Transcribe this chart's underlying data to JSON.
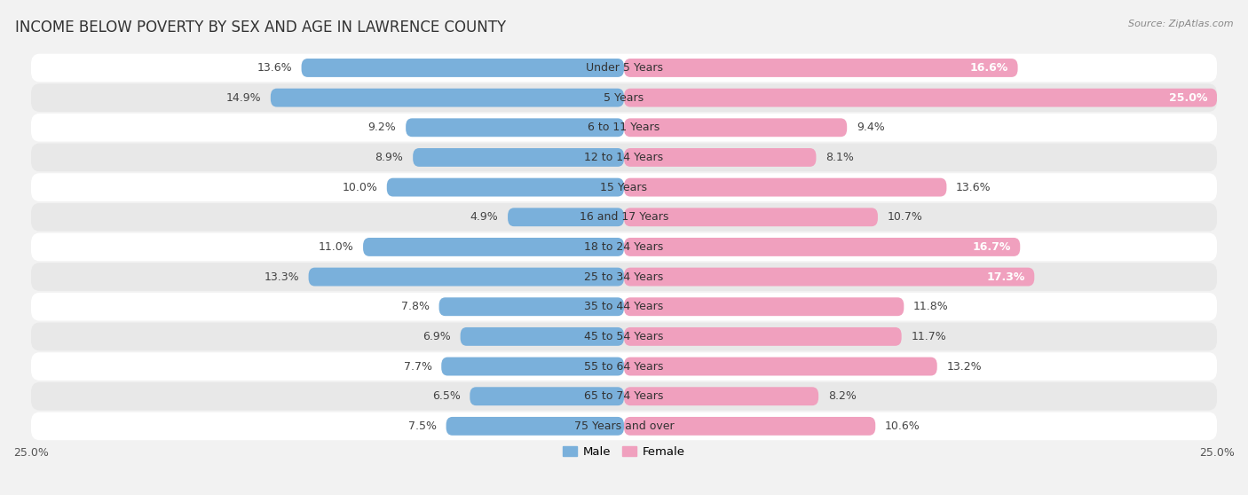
{
  "title": "INCOME BELOW POVERTY BY SEX AND AGE IN LAWRENCE COUNTY",
  "source": "Source: ZipAtlas.com",
  "categories": [
    "Under 5 Years",
    "5 Years",
    "6 to 11 Years",
    "12 to 14 Years",
    "15 Years",
    "16 and 17 Years",
    "18 to 24 Years",
    "25 to 34 Years",
    "35 to 44 Years",
    "45 to 54 Years",
    "55 to 64 Years",
    "65 to 74 Years",
    "75 Years and over"
  ],
  "male": [
    13.6,
    14.9,
    9.2,
    8.9,
    10.0,
    4.9,
    11.0,
    13.3,
    7.8,
    6.9,
    7.7,
    6.5,
    7.5
  ],
  "female": [
    16.6,
    25.0,
    9.4,
    8.1,
    13.6,
    10.7,
    16.7,
    17.3,
    11.8,
    11.7,
    13.2,
    8.2,
    10.6
  ],
  "male_color": "#7ab0db",
  "female_color": "#f0a0be",
  "background_color": "#f2f2f2",
  "row_bg_light": "#ffffff",
  "row_bg_dark": "#e8e8e8",
  "xlim": 25.0,
  "bar_height": 0.62,
  "title_fontsize": 12,
  "label_fontsize": 9,
  "category_fontsize": 9,
  "female_inner_threshold": 15.0
}
